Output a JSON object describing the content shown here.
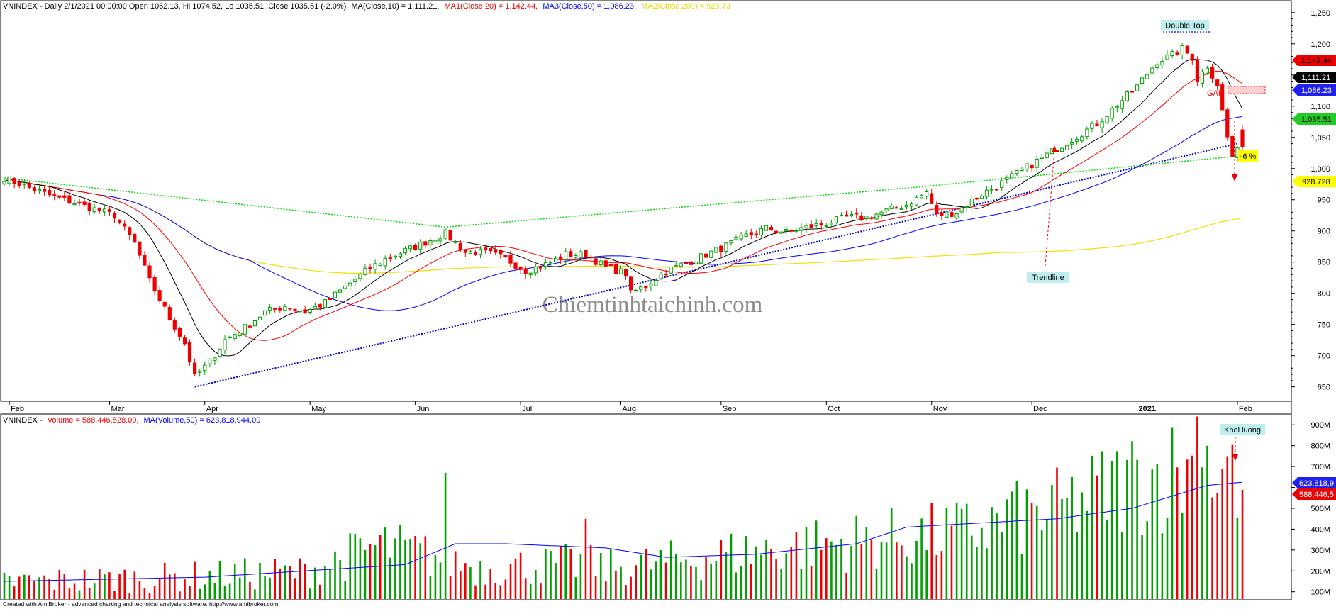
{
  "colors": {
    "up": "#00a000",
    "down": "#ee0000",
    "ma10": "#000000",
    "ma20": "#ff0000",
    "ma50": "#0000ff",
    "ma200": "#f0e000",
    "resistance": "#00dd00",
    "support": "#0000cc",
    "callout_bg": "#bfeeee",
    "pct_bg": "#ffff00"
  },
  "price_header": {
    "prefix": "VNINDEX - Daily 2/1/2021 00:00:00 Open 1062.13, Hi 1074.52, Lo 1035.51, Close 1035.51 (-2.0%)",
    "ma10": "MA(Close,10) = 1,111.21,",
    "ma20": "MA1(Close,20) = 1,142.44,",
    "ma50": "MA3(Close,50) = 1,086.23,",
    "ma200": "MA2(Close,200) = 928.73"
  },
  "volume_header": {
    "prefix": "VNINDEX -",
    "vol": "Volume = 588,446,528.00,",
    "ma": "MA(Volume,50) = 623,818,944.00"
  },
  "footer": "Created with AmiBroker - advanced charting and technical analysis software. http://www.amibroker.com",
  "watermark": "Chiemtinhtaichinh.com",
  "annotations": {
    "double_top": "Double Top",
    "trendline": "Trendline",
    "gap": "GAP",
    "pct": "-6 %",
    "volume_callout": "Khoi luong"
  },
  "price_tags": {
    "ma20": "1,142.44",
    "ma10": "1,111.21",
    "ma50": "1,086.23",
    "close": "1,035.51",
    "ma200": "928.728"
  },
  "volume_tags": {
    "ma": "623,818,9",
    "vol": "588,446,5"
  },
  "chart_data": [
    {
      "type": "candlestick",
      "title": "VNINDEX - Daily",
      "x_ticks": [
        "Feb",
        "Mar",
        "Apr",
        "May",
        "Jun",
        "Jul",
        "Aug",
        "Sep",
        "Oct",
        "Nov",
        "Dec",
        "2021",
        "Feb"
      ],
      "y_ticks": [
        650,
        700,
        750,
        800,
        850,
        900,
        950,
        1000,
        1050,
        1100,
        1150,
        1200,
        1250
      ],
      "y_tick_labels": [
        "650",
        "700",
        "750",
        "800",
        "850",
        "900",
        "950",
        "1,000",
        "1,050",
        "1,100",
        "1,150",
        "1,200",
        "1,250"
      ],
      "ylim": [
        628,
        1268
      ],
      "legend": "top-left",
      "grid": false,
      "indicators": [
        {
          "name": "MA(Close,10)",
          "last": 1111.21
        },
        {
          "name": "MA1(Close,20)",
          "last": 1142.44
        },
        {
          "name": "MA3(Close,50)",
          "last": 1086.23
        },
        {
          "name": "MA2(Close,200)",
          "last": 928.73
        }
      ],
      "close_path": [
        [
          0,
          985
        ],
        [
          8,
          960
        ],
        [
          16,
          940
        ],
        [
          22,
          925
        ],
        [
          26,
          880
        ],
        [
          29,
          820
        ],
        [
          33,
          760
        ],
        [
          36,
          720
        ],
        [
          38,
          666
        ],
        [
          41,
          690
        ],
        [
          44,
          725
        ],
        [
          48,
          745
        ],
        [
          52,
          770
        ],
        [
          56,
          780
        ],
        [
          60,
          770
        ],
        [
          64,
          785
        ],
        [
          68,
          810
        ],
        [
          72,
          835
        ],
        [
          76,
          855
        ],
        [
          80,
          868
        ],
        [
          84,
          882
        ],
        [
          88,
          896
        ],
        [
          92,
          866
        ],
        [
          96,
          866
        ],
        [
          100,
          856
        ],
        [
          104,
          836
        ],
        [
          108,
          846
        ],
        [
          112,
          862
        ],
        [
          116,
          862
        ],
        [
          120,
          842
        ],
        [
          124,
          832
        ],
        [
          125,
          800
        ],
        [
          128,
          812
        ],
        [
          132,
          836
        ],
        [
          136,
          848
        ],
        [
          140,
          862
        ],
        [
          144,
          876
        ],
        [
          148,
          892
        ],
        [
          152,
          904
        ],
        [
          156,
          898
        ],
        [
          160,
          906
        ],
        [
          164,
          912
        ],
        [
          168,
          922
        ],
        [
          172,
          922
        ],
        [
          176,
          932
        ],
        [
          180,
          942
        ],
        [
          184,
          962
        ],
        [
          186,
          925
        ],
        [
          190,
          930
        ],
        [
          194,
          955
        ],
        [
          198,
          972
        ],
        [
          202,
          992
        ],
        [
          206,
          1012
        ],
        [
          210,
          1032
        ],
        [
          214,
          1052
        ],
        [
          218,
          1072
        ],
        [
          222,
          1102
        ],
        [
          226,
          1132
        ],
        [
          230,
          1172
        ],
        [
          233,
          1182
        ],
        [
          235,
          1192
        ],
        [
          237,
          1178
        ],
        [
          238,
          1143
        ],
        [
          240,
          1165
        ],
        [
          242,
          1135
        ],
        [
          244,
          1050
        ],
        [
          245,
          1020
        ],
        [
          247,
          1035
        ]
      ],
      "support_trendline": [
        [
          38,
          650
        ],
        [
          246,
          1040
        ]
      ],
      "resistance_trendline": [
        [
          0,
          985
        ],
        [
          88,
          906
        ],
        [
          182,
          970
        ],
        [
          246,
          1020
        ]
      ],
      "close": 1035.51,
      "open": 1062.13,
      "high": 1074.52,
      "low": 1035.51
    },
    {
      "type": "bar",
      "title": "VNINDEX - Volume",
      "y_ticks": [
        100,
        200,
        300,
        400,
        500,
        600,
        700,
        800,
        900
      ],
      "y_tick_labels": [
        "100M",
        "200M",
        "300M",
        "400M",
        "500M",
        "600M",
        "700M",
        "800M",
        "900M"
      ],
      "ylim": [
        65,
        945
      ],
      "unit": "M",
      "last_volume": 588446528,
      "last_ma50": 623818944,
      "vol_path": [
        [
          0,
          150
        ],
        [
          30,
          170
        ],
        [
          60,
          200
        ],
        [
          75,
          330
        ],
        [
          85,
          280
        ],
        [
          95,
          220
        ],
        [
          105,
          230
        ],
        [
          115,
          240
        ],
        [
          120,
          220
        ],
        [
          130,
          240
        ],
        [
          145,
          290
        ],
        [
          160,
          330
        ],
        [
          175,
          360
        ],
        [
          190,
          390
        ],
        [
          210,
          500
        ],
        [
          225,
          650
        ],
        [
          235,
          700
        ],
        [
          247,
          640
        ]
      ],
      "ma_path": [
        [
          0,
          150
        ],
        [
          40,
          170
        ],
        [
          60,
          200
        ],
        [
          80,
          230
        ],
        [
          90,
          330
        ],
        [
          100,
          330
        ],
        [
          120,
          310
        ],
        [
          132,
          265
        ],
        [
          150,
          280
        ],
        [
          170,
          330
        ],
        [
          180,
          410
        ],
        [
          210,
          450
        ],
        [
          225,
          500
        ],
        [
          240,
          610
        ],
        [
          247,
          625
        ]
      ],
      "spikes": [
        [
          88,
          670
        ],
        [
          116,
          450
        ],
        [
          201,
          580
        ],
        [
          238,
          940
        ],
        [
          240,
          800
        ],
        [
          244,
          750
        ]
      ]
    }
  ]
}
